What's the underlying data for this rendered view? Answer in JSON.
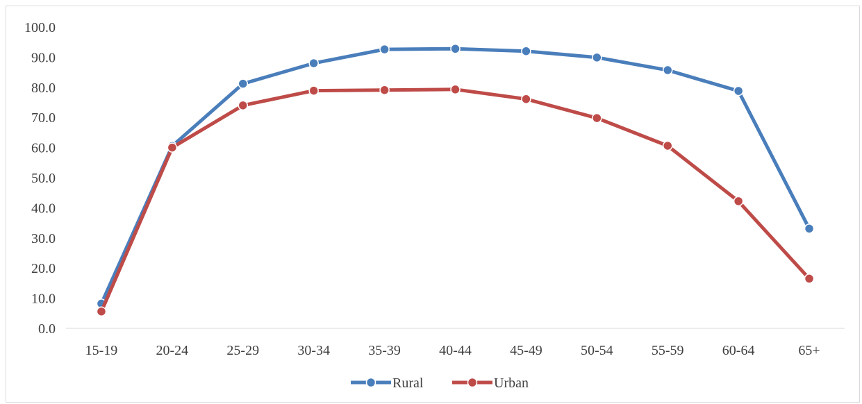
{
  "chart_data": {
    "type": "line",
    "title": "",
    "xlabel": "",
    "ylabel": "",
    "categories": [
      "15-19",
      "20-24",
      "25-29",
      "30-34",
      "35-39",
      "40-44",
      "45-49",
      "50-54",
      "55-59",
      "60-64",
      "65+"
    ],
    "series": [
      {
        "name": "Rural",
        "color": "#4a7ebb",
        "values": [
          8.2,
          60.5,
          81.2,
          88.0,
          92.6,
          92.8,
          92.0,
          89.9,
          85.7,
          78.8,
          33.1
        ]
      },
      {
        "name": "Urban",
        "color": "#be4b48",
        "values": [
          5.6,
          60.0,
          74.0,
          78.9,
          79.1,
          79.3,
          76.1,
          69.8,
          60.6,
          42.2,
          16.5
        ]
      }
    ],
    "ylim": [
      0,
      100
    ],
    "yticks": [
      "0.0",
      "10.0",
      "20.0",
      "30.0",
      "40.0",
      "50.0",
      "60.0",
      "70.0",
      "80.0",
      "90.0",
      "100.0"
    ],
    "grid": false,
    "legend_position": "bottom"
  }
}
